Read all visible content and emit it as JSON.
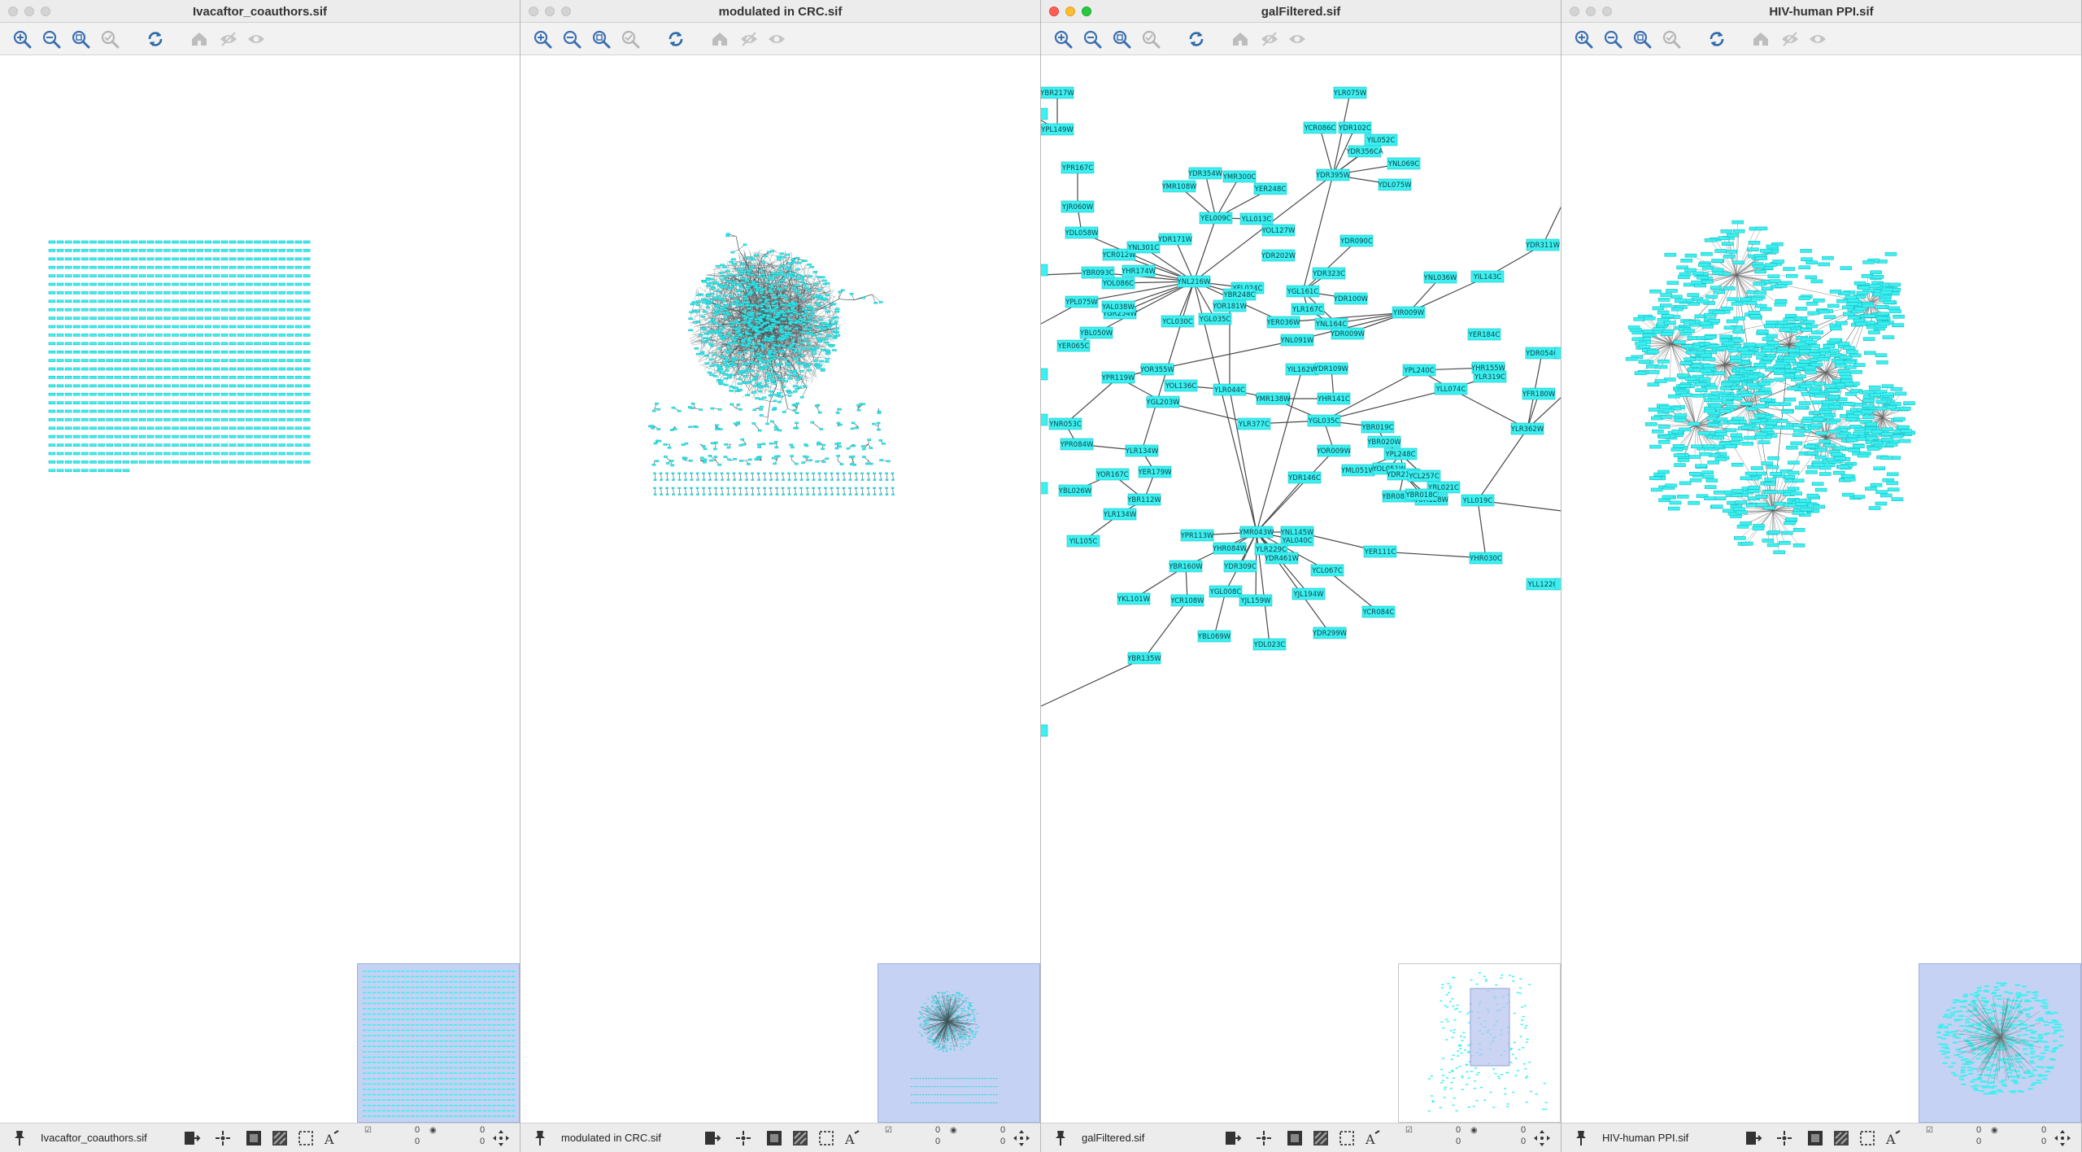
{
  "windows": [
    {
      "title": "Ivacaftor_coauthors.sif",
      "status_label": "Ivacaftor_coauthors.sif",
      "counts": [
        "0",
        "0",
        "0",
        "0"
      ]
    },
    {
      "title": "modulated in CRC.sif",
      "status_label": "modulated in CRC.sif",
      "counts": [
        "0",
        "0",
        "0",
        "0"
      ]
    },
    {
      "title": "galFiltered.sif",
      "status_label": "galFiltered.sif",
      "counts": [
        "0",
        "0",
        "0",
        "0"
      ]
    },
    {
      "title": "HIV-human PPI.sif",
      "status_label": "HIV-human PPI.sif",
      "counts": [
        "0",
        "0",
        "0",
        "0"
      ]
    }
  ],
  "toolbar": {
    "zoom_in": "zoom-in-icon",
    "zoom_out": "zoom-out-icon",
    "zoom_fit": "zoom-fit-icon",
    "zoom_selected": "zoom-selected-icon",
    "refresh": "refresh-icon",
    "home": "home-icon",
    "hide": "hide-icon",
    "show": "show-icon"
  },
  "galFiltered_nodes": [
    "YBR217W",
    "YPL149W",
    "YPR167C",
    "YJR060W",
    "YDL058W",
    "YCR012W",
    "YNL301C",
    "YDR171W",
    "YOL086C",
    "YNL216W",
    "YGR254W",
    "YHR174W",
    "YBR093C",
    "YAL038W",
    "YER065C",
    "YBL050W",
    "YPL075W",
    "YCL030C",
    "YGL035C",
    "YDR354W",
    "YMR300C",
    "YMR108W",
    "YER248C",
    "YEL009C",
    "YFL024C",
    "YBR248C",
    "YLL013C",
    "YOL127W",
    "YLR075W",
    "YCR086C",
    "YDR102C",
    "YIL052C",
    "YDR356CA",
    "YDR395W",
    "YNL069C",
    "YDL075W",
    "YDR202W",
    "YGL161C",
    "YDR323C",
    "YDR090C",
    "YDR100W",
    "YLR167C",
    "YER036W",
    "YNL164C",
    "YIR009W",
    "YDR009W",
    "YNL036W",
    "YIL143C",
    "YDR311W",
    "YOR181W",
    "YNL091W",
    "YIL162W",
    "YDR109W",
    "YHR141C",
    "YER184C",
    "YPL240C",
    "YLL074C",
    "YHR155W",
    "YLR319C",
    "YML081W",
    "YFR180W",
    "YPR119W",
    "YOR355W",
    "YOL136C",
    "YLR044C",
    "YMR138W",
    "YGL203W",
    "YLR377C",
    "YGL035C2",
    "YBR019C",
    "YBR020W",
    "YOR009W",
    "YPL248C",
    "YML051W",
    "YOL051W",
    "YDR212W",
    "YLL019C",
    "YCL257C",
    "YBL021C",
    "YDR146C",
    "YBR081W",
    "YOR128W",
    "YBR018C",
    "YBL026W",
    "YOR167C",
    "YNR053C",
    "YBR112W",
    "YLR134W",
    "YIL105C",
    "YPR113W",
    "YMR043W",
    "YNL145W",
    "YAL040C",
    "YER111C",
    "YHR030C",
    "YLR229C",
    "YDR461W",
    "YCL067C",
    "YDR309C",
    "YBR160W",
    "YHR084W",
    "YGL008C",
    "YKL101W",
    "YCR108W",
    "YJL159W",
    "YBL069W",
    "YDL023C",
    "YJL194W",
    "YDR299W",
    "YCR084C",
    "YBR135W",
    "YLL122C",
    "YDR054C",
    "YLR362W",
    "YPR084W",
    "YLR134W2",
    "YER179W"
  ]
}
